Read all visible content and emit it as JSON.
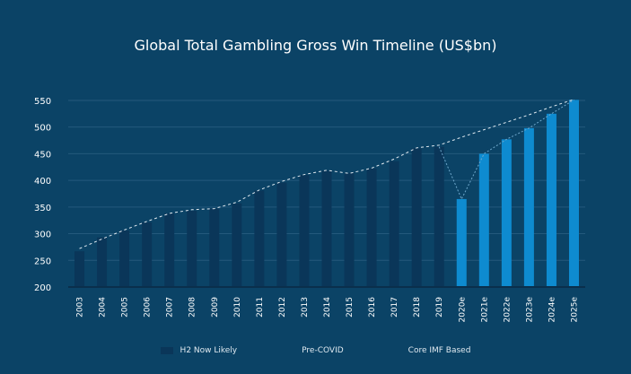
{
  "chart_data": {
    "type": "bar",
    "title": "Global Total Gambling Gross Win Timeline (US$bn)",
    "xlabel": "",
    "ylabel": "",
    "ylim": [
      200,
      560
    ],
    "yticks": [
      200,
      250,
      300,
      350,
      400,
      450,
      500,
      550
    ],
    "grid": true,
    "categories": [
      "2003",
      "2004",
      "2005",
      "2006",
      "2007",
      "2008",
      "2009",
      "2010",
      "2011",
      "2012",
      "2013",
      "2014",
      "2015",
      "2016",
      "2017",
      "2018",
      "2019",
      "2020e",
      "2021e",
      "2022e",
      "2023e",
      "2024e",
      "2025e"
    ],
    "series": [
      {
        "name": "H2 Now Likely",
        "kind": "bar",
        "color": "#0a3659",
        "values": [
          267,
          293,
          306,
          321,
          338,
          343,
          347,
          357,
          381,
          396,
          410,
          418,
          414,
          422,
          436,
          460,
          463,
          null,
          null,
          null,
          null,
          null,
          null
        ]
      },
      {
        "name": "Core IMF Based",
        "kind": "bar",
        "color": "#0e8bd0",
        "values": [
          null,
          null,
          null,
          null,
          null,
          null,
          null,
          null,
          null,
          null,
          null,
          null,
          null,
          null,
          null,
          null,
          null,
          365,
          450,
          477,
          498,
          525,
          551
        ]
      },
      {
        "name": "Pre-COVID",
        "kind": "line",
        "color": "#dfe9f0",
        "values": [
          272,
          290,
          307,
          323,
          338,
          345,
          347,
          359,
          382,
          398,
          411,
          419,
          413,
          423,
          440,
          461,
          466,
          481,
          495,
          509,
          523,
          538,
          552
        ]
      }
    ],
    "legend": [
      "H2 Now Likely",
      "Pre-COVID",
      "Core IMF Based"
    ],
    "legend_position": "bottom"
  }
}
